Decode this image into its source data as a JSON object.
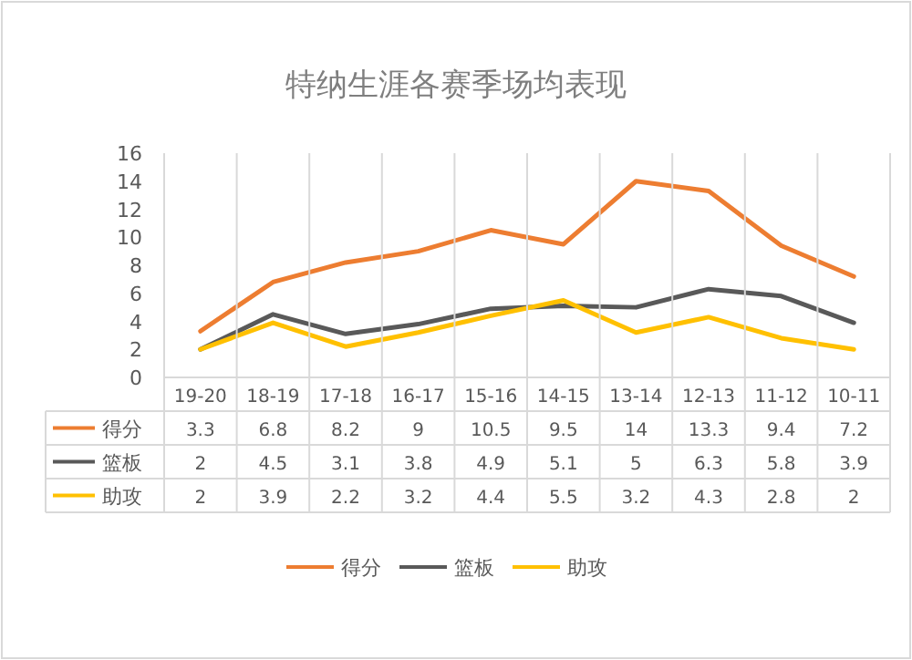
{
  "chart_data": {
    "type": "line",
    "title": "特纳生涯各赛季场均表现",
    "categories": [
      "19-20",
      "18-19",
      "17-18",
      "16-17",
      "15-16",
      "14-15",
      "13-14",
      "12-13",
      "11-12",
      "10-11"
    ],
    "series": [
      {
        "name": "得分",
        "color": "#ed7d31",
        "values": [
          3.3,
          6.8,
          8.2,
          9,
          10.5,
          9.5,
          14,
          13.3,
          9.4,
          7.2
        ]
      },
      {
        "name": "篮板",
        "color": "#595959",
        "values": [
          2,
          4.5,
          3.1,
          3.8,
          4.9,
          5.1,
          5,
          6.3,
          5.8,
          3.9
        ]
      },
      {
        "name": "助攻",
        "color": "#ffc000",
        "values": [
          2,
          3.9,
          2.2,
          3.2,
          4.4,
          5.5,
          3.2,
          4.3,
          2.8,
          2
        ]
      }
    ],
    "ylim": [
      0,
      16
    ],
    "yticks": [
      0,
      2,
      4,
      6,
      8,
      10,
      12,
      14,
      16
    ],
    "data_labels": true,
    "legend": "bottom",
    "grid": false,
    "marker": "none",
    "line_style": "solid"
  }
}
